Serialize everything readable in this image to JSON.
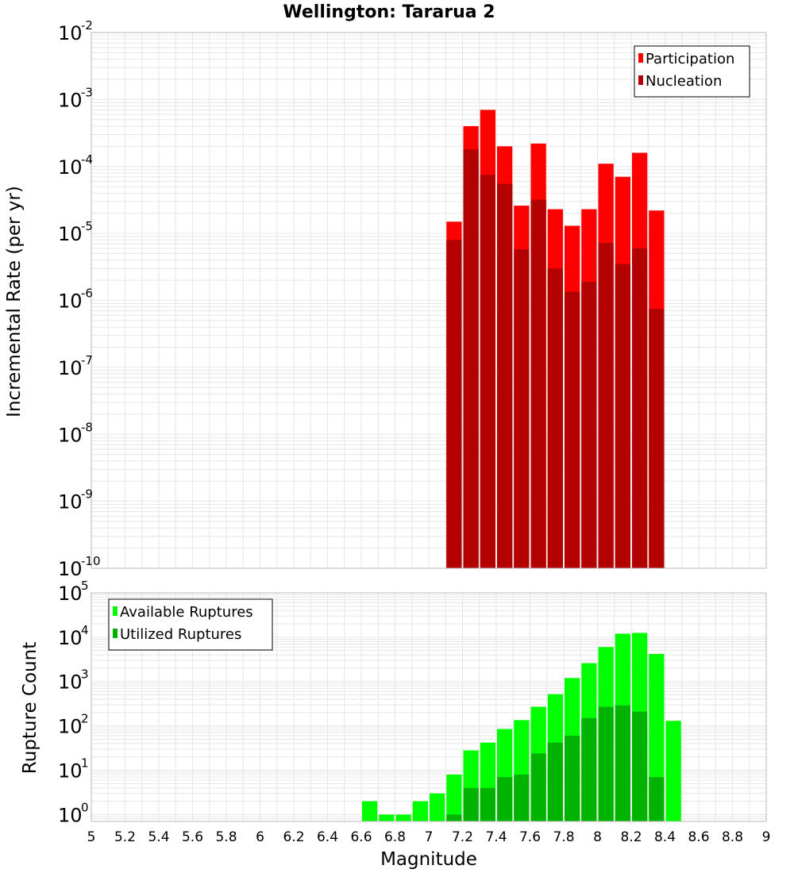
{
  "chart_data": [
    {
      "type": "bar",
      "title": "Wellington: Tararua 2",
      "ylabel": "Incremental Rate (per yr)",
      "xlabel": "",
      "xlim": [
        5,
        9
      ],
      "ylim": [
        1e-10,
        0.01
      ],
      "yscale": "log",
      "bin_width": 0.1,
      "y_ticks": [
        "10^-10",
        "10^-9",
        "10^-8",
        "10^-7",
        "10^-6",
        "10^-5",
        "10^-4",
        "10^-3",
        "10^-2"
      ],
      "grid": true,
      "legend_position": "top-right",
      "x": [
        7.15,
        7.25,
        7.35,
        7.45,
        7.55,
        7.65,
        7.75,
        7.85,
        7.95,
        8.05,
        8.15,
        8.25,
        8.35
      ],
      "series": [
        {
          "name": "Participation",
          "color": "#ff0000",
          "values": [
            1.5e-05,
            0.0004,
            0.0007,
            0.0002,
            2.6e-05,
            0.00022,
            2.3e-05,
            1.3e-05,
            2.3e-05,
            0.00011,
            7e-05,
            0.00016,
            2.2e-05
          ]
        },
        {
          "name": "Nucleation",
          "color": "#b30000",
          "values": [
            8e-06,
            0.00018,
            7.5e-05,
            5.5e-05,
            5.8e-06,
            3.2e-05,
            3e-06,
            1.35e-06,
            1.9e-06,
            7.2e-06,
            3.5e-06,
            6e-06,
            7.5e-07
          ]
        }
      ]
    },
    {
      "type": "bar",
      "title": "",
      "ylabel": "Rupture Count",
      "xlabel": "Magnitude",
      "xlim": [
        5,
        9
      ],
      "ylim": [
        0.7,
        100000.0
      ],
      "yscale": "log",
      "bin_width": 0.1,
      "x_ticks": [
        "5",
        "5.2",
        "5.4",
        "5.6",
        "5.8",
        "6",
        "6.2",
        "6.4",
        "6.6",
        "6.8",
        "7",
        "7.2",
        "7.4",
        "7.6",
        "7.8",
        "8",
        "8.2",
        "8.4",
        "8.6",
        "8.8",
        "9"
      ],
      "y_ticks": [
        "10^0",
        "10^1",
        "10^2",
        "10^3",
        "10^4",
        "10^5"
      ],
      "grid": true,
      "legend_position": "top-left",
      "x": [
        6.65,
        6.75,
        6.85,
        6.95,
        7.05,
        7.15,
        7.25,
        7.35,
        7.45,
        7.55,
        7.65,
        7.75,
        7.85,
        7.95,
        8.05,
        8.15,
        8.25,
        8.35,
        8.45
      ],
      "series": [
        {
          "name": "Available Ruptures",
          "color": "#00ff00",
          "values": [
            2,
            1,
            1,
            2,
            3,
            8,
            28,
            42,
            85,
            135,
            270,
            520,
            1200,
            2600,
            6000,
            12000,
            12500,
            4200,
            130
          ]
        },
        {
          "name": "Utilized Ruptures",
          "color": "#00b300",
          "values": [
            0,
            0,
            0,
            0,
            0,
            1,
            4,
            4,
            7,
            8,
            24,
            42,
            60,
            150,
            270,
            290,
            210,
            7,
            0
          ]
        }
      ]
    }
  ]
}
